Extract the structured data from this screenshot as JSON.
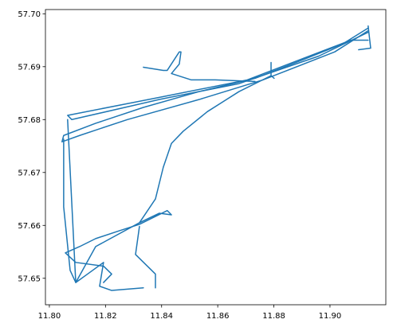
{
  "chart_data": {
    "type": "line",
    "color": "#1f77b4",
    "xlim": [
      11.7986,
      11.9199
    ],
    "ylim": [
      57.645,
      57.7008
    ],
    "xticks": [
      {
        "value": 11.8,
        "label": "11.80"
      },
      11.82,
      11.84,
      11.86,
      11.88,
      {
        "value": 11.9,
        "label": "11.90"
      }
    ],
    "yticks": [
      57.65,
      57.66,
      57.67,
      57.68,
      57.69,
      {
        "value": 57.7,
        "label": "57.70"
      }
    ],
    "series": [
      {
        "x": [
          11.9136,
          11.9045,
          11.8903,
          11.8733,
          11.8534,
          11.8335,
          11.8165,
          11.8051,
          11.8045,
          11.8108,
          11.8278,
          11.8534,
          11.8761,
          11.9017,
          11.9136
        ],
        "y": [
          57.6973,
          57.6943,
          57.6913,
          57.6878,
          57.6853,
          57.6823,
          57.6793,
          57.677,
          57.6758,
          57.677,
          57.68,
          57.6838,
          57.6875,
          57.6928,
          57.6968
        ]
      },
      {
        "x": [
          11.9136,
          11.896,
          11.8676,
          11.8392,
          11.808,
          11.8065,
          11.8392,
          11.8705,
          11.9074,
          11.9136
        ],
        "y": [
          57.6965,
          57.692,
          57.6868,
          57.6838,
          57.68,
          57.6808,
          57.6842,
          57.6875,
          57.695,
          57.695
        ]
      },
      {
        "x": [
          11.8051,
          11.8051,
          11.8074,
          11.8094,
          11.8136,
          11.8193,
          11.8179,
          11.8222,
          11.8335
        ],
        "y": [
          57.6763,
          57.6635,
          57.6515,
          57.6492,
          57.6508,
          57.653,
          57.6485,
          57.6477,
          57.6482
        ]
      },
      {
        "x": [
          11.8065,
          11.8094,
          11.8165,
          11.8321,
          11.8378,
          11.8406,
          11.8435,
          11.8477,
          11.8563,
          11.8676,
          11.879
        ],
        "y": [
          57.68,
          57.6492,
          57.656,
          57.6605,
          57.665,
          57.671,
          57.6755,
          57.6778,
          57.6815,
          57.6853,
          57.6883
        ]
      },
      {
        "x": [
          11.8321,
          11.8392,
          11.8435,
          11.842,
          11.8321,
          11.825,
          11.8165,
          11.8108,
          11.8057,
          11.8094,
          11.8193,
          11.8222,
          11.8193
        ],
        "y": [
          57.6605,
          57.6623,
          57.662,
          57.6628,
          57.6602,
          57.659,
          57.6575,
          57.656,
          57.6548,
          57.653,
          57.6523,
          57.6508,
          57.6492
        ]
      },
      {
        "x": [
          11.8335,
          11.8406,
          11.842,
          11.8463,
          11.8469,
          11.8463,
          11.8435,
          11.8506,
          11.8591,
          11.8733
        ],
        "y": [
          57.6899,
          57.6893,
          57.6893,
          57.6928,
          57.6928,
          57.6905,
          57.6887,
          57.6875,
          57.6875,
          57.6872
        ]
      },
      {
        "x": [
          11.879,
          11.879,
          11.8801
        ],
        "y": [
          57.6908,
          57.6883,
          57.6878
        ]
      },
      {
        "x": [
          11.8321,
          11.8307,
          11.8378,
          11.8378
        ],
        "y": [
          57.6598,
          57.6545,
          57.6508,
          57.6482
        ]
      },
      {
        "x": [
          11.9136,
          11.9145,
          11.9102
        ],
        "y": [
          57.6977,
          57.6935,
          57.6932
        ]
      }
    ]
  }
}
